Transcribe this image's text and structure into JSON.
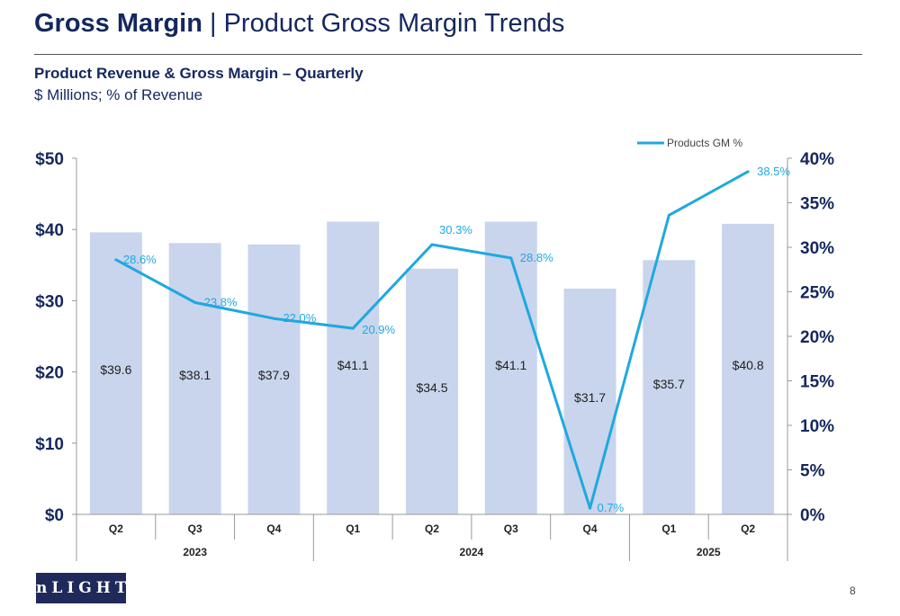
{
  "header": {
    "title_bold": "Gross Margin",
    "title_rest": "| Product Gross Margin Trends",
    "subtitle": "Product Revenue & Gross Margin – Quarterly",
    "units": "$ Millions; % of Revenue"
  },
  "logo": {
    "text": "nLIGHT"
  },
  "page_number": "8",
  "colors": {
    "bar": "#c9d5ec",
    "line": "#1fa8e0",
    "axis_text": "#14275e"
  },
  "chart_data": {
    "type": "bar",
    "categories": [
      "Q2",
      "Q3",
      "Q4",
      "Q1",
      "Q2",
      "Q3",
      "Q4",
      "Q1",
      "Q2"
    ],
    "groups": [
      {
        "label": "2023",
        "count": 3
      },
      {
        "label": "2024",
        "count": 4
      },
      {
        "label": "2025",
        "count": 2
      }
    ],
    "series": [
      {
        "type": "bar",
        "axis": "left",
        "values": [
          39.6,
          38.1,
          37.9,
          41.1,
          34.5,
          41.1,
          31.7,
          35.7,
          40.8
        ],
        "data_labels": [
          "$39.6",
          "$38.1",
          "$37.9",
          "$41.1",
          "$34.5",
          "$41.1",
          "$31.7",
          "$35.7",
          "$40.8"
        ]
      },
      {
        "type": "line",
        "axis": "right",
        "name": "Products GM %",
        "values": [
          28.6,
          23.8,
          22.0,
          20.9,
          30.3,
          28.8,
          0.7,
          33.6,
          38.5
        ],
        "data_labels": [
          "28.6%",
          "23.8%",
          "22.0%",
          "20.9%",
          "30.3%",
          "28.8%",
          "0.7%",
          "",
          "38.5%"
        ]
      }
    ],
    "ylim_left": [
      0,
      50
    ],
    "yticks_left": [
      "$0",
      "$10",
      "$20",
      "$30",
      "$40",
      "$50"
    ],
    "ylim_right": [
      0,
      40
    ],
    "yticks_right": [
      "0%",
      "5%",
      "10%",
      "15%",
      "20%",
      "25%",
      "30%",
      "35%",
      "40%"
    ],
    "legend": "top-right",
    "grid": false
  }
}
